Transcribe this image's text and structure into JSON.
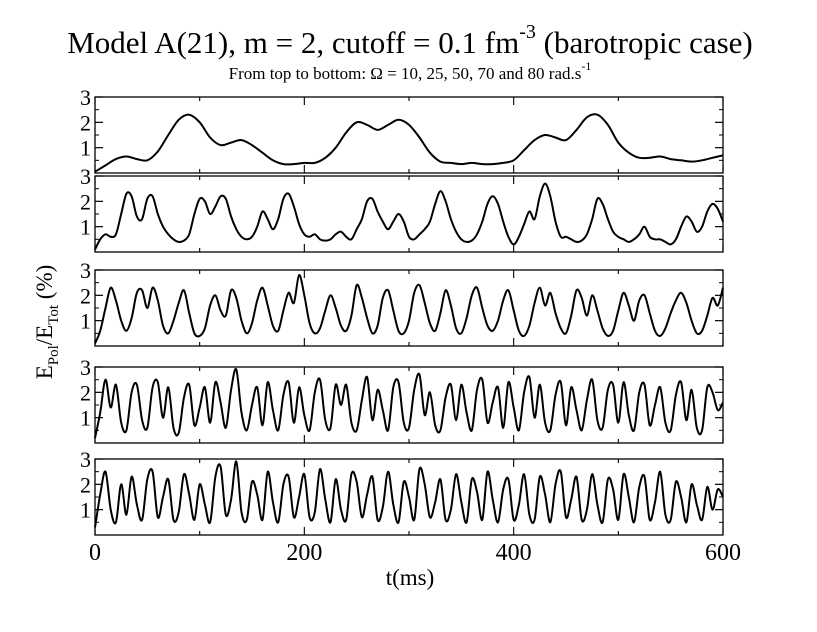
{
  "chart_data": {
    "type": "line",
    "title": {
      "prefix": "Model A(21), m = 2, cutoff = 0.1 fm",
      "exponent": "-3",
      "suffix": " (barotropic case)"
    },
    "subtitle": {
      "text": "From top to bottom: Ω = 10, 25, 50, 70 and 80 rad.s",
      "exponent": "-1"
    },
    "ylabel": {
      "E": "E",
      "sub1": "Pol",
      "slash": "/E",
      "sub2": "Tot",
      "unit": " (%)"
    },
    "xlabel": "t(ms)",
    "xlim": [
      0,
      600
    ],
    "x_ticks": [
      "0",
      "200",
      "400",
      "600"
    ],
    "panels": [
      {
        "ylim": [
          0,
          3
        ],
        "y_ticks": [
          "1",
          "2",
          "3"
        ],
        "x": [
          0,
          10,
          20,
          30,
          40,
          50,
          60,
          70,
          80,
          90,
          100,
          110,
          120,
          130,
          140,
          150,
          160,
          170,
          180,
          190,
          200,
          210,
          220,
          230,
          240,
          250,
          260,
          270,
          280,
          290,
          300,
          310,
          320,
          330,
          340,
          350,
          360,
          370,
          380,
          390,
          400,
          410,
          420,
          430,
          440,
          450,
          460,
          470,
          480,
          490,
          500,
          510,
          520,
          530,
          540,
          550,
          560,
          570,
          580,
          590,
          600
        ],
        "y": [
          0.05,
          0.3,
          0.55,
          0.65,
          0.55,
          0.5,
          0.85,
          1.5,
          2.1,
          2.3,
          2.0,
          1.4,
          1.1,
          1.2,
          1.3,
          1.1,
          0.8,
          0.5,
          0.35,
          0.35,
          0.4,
          0.4,
          0.6,
          1.0,
          1.6,
          2.0,
          1.9,
          1.7,
          1.9,
          2.1,
          1.9,
          1.4,
          0.8,
          0.45,
          0.4,
          0.35,
          0.4,
          0.35,
          0.35,
          0.4,
          0.5,
          0.9,
          1.3,
          1.5,
          1.4,
          1.3,
          1.7,
          2.2,
          2.3,
          1.9,
          1.2,
          0.8,
          0.6,
          0.6,
          0.65,
          0.55,
          0.5,
          0.45,
          0.5,
          0.6,
          0.7
        ]
      },
      {
        "ylim": [
          0,
          3
        ],
        "y_ticks": [
          "1",
          "2",
          "3"
        ],
        "x": [
          0,
          5,
          10,
          15,
          20,
          25,
          30,
          35,
          40,
          45,
          50,
          55,
          60,
          65,
          70,
          75,
          80,
          85,
          90,
          95,
          100,
          105,
          110,
          115,
          120,
          125,
          130,
          135,
          140,
          145,
          150,
          155,
          160,
          165,
          170,
          175,
          180,
          185,
          190,
          195,
          200,
          205,
          210,
          215,
          220,
          225,
          230,
          235,
          240,
          245,
          250,
          255,
          260,
          265,
          270,
          275,
          280,
          285,
          290,
          295,
          300,
          305,
          310,
          315,
          320,
          325,
          330,
          335,
          340,
          345,
          350,
          355,
          360,
          365,
          370,
          375,
          380,
          385,
          390,
          395,
          400,
          405,
          410,
          415,
          420,
          425,
          430,
          435,
          440,
          445,
          450,
          455,
          460,
          465,
          470,
          475,
          480,
          485,
          490,
          495,
          500,
          505,
          510,
          515,
          520,
          525,
          530,
          535,
          540,
          545,
          550,
          555,
          560,
          565,
          570,
          575,
          580,
          585,
          590,
          595,
          600
        ],
        "y": [
          0.1,
          0.5,
          0.7,
          0.6,
          0.7,
          1.5,
          2.3,
          2.2,
          1.4,
          1.3,
          2.1,
          2.2,
          1.5,
          1.0,
          0.7,
          0.5,
          0.4,
          0.45,
          0.7,
          1.5,
          2.1,
          2.0,
          1.5,
          1.8,
          2.2,
          2.1,
          1.4,
          0.9,
          0.6,
          0.5,
          0.6,
          1.0,
          1.6,
          1.3,
          0.9,
          1.3,
          2.1,
          2.3,
          1.8,
          1.1,
          0.7,
          0.6,
          0.7,
          0.5,
          0.45,
          0.5,
          0.7,
          0.8,
          0.6,
          0.5,
          0.9,
          1.3,
          2.0,
          2.1,
          1.6,
          1.2,
          0.9,
          1.2,
          1.5,
          1.2,
          0.6,
          0.5,
          0.7,
          0.9,
          1.2,
          1.9,
          2.4,
          2.0,
          1.3,
          0.8,
          0.5,
          0.4,
          0.45,
          0.7,
          1.2,
          1.9,
          2.2,
          1.9,
          1.2,
          0.6,
          0.3,
          0.6,
          1.1,
          1.6,
          1.3,
          2.2,
          2.7,
          2.2,
          1.2,
          0.6,
          0.6,
          0.5,
          0.4,
          0.45,
          0.7,
          1.3,
          2.1,
          1.9,
          1.3,
          0.8,
          0.6,
          0.5,
          0.4,
          0.5,
          0.7,
          1.0,
          0.6,
          0.5,
          0.5,
          0.4,
          0.3,
          0.5,
          1.0,
          1.4,
          1.2,
          0.8,
          1.0,
          1.6,
          1.9,
          1.7,
          1.2
        ]
      },
      {
        "ylim": [
          0,
          3
        ],
        "y_ticks": [
          "1",
          "2",
          "3"
        ],
        "x": [
          0,
          5,
          10,
          15,
          20,
          25,
          30,
          35,
          40,
          45,
          50,
          55,
          60,
          65,
          70,
          75,
          80,
          85,
          90,
          95,
          100,
          105,
          110,
          115,
          120,
          125,
          130,
          135,
          140,
          145,
          150,
          155,
          160,
          165,
          170,
          175,
          180,
          185,
          190,
          195,
          200,
          205,
          210,
          215,
          220,
          225,
          230,
          235,
          240,
          245,
          250,
          255,
          260,
          265,
          270,
          275,
          280,
          285,
          290,
          295,
          300,
          305,
          310,
          315,
          320,
          325,
          330,
          335,
          340,
          345,
          350,
          355,
          360,
          365,
          370,
          375,
          380,
          385,
          390,
          395,
          400,
          405,
          410,
          415,
          420,
          425,
          430,
          435,
          440,
          445,
          450,
          455,
          460,
          465,
          470,
          475,
          480,
          485,
          490,
          495,
          500,
          505,
          510,
          515,
          520,
          525,
          530,
          535,
          540,
          545,
          550,
          555,
          560,
          565,
          570,
          575,
          580,
          585,
          590,
          595,
          600
        ],
        "y": [
          0.1,
          0.6,
          1.5,
          2.3,
          1.8,
          1.0,
          0.6,
          1.1,
          2.1,
          2.2,
          1.5,
          2.3,
          1.8,
          0.8,
          0.5,
          1.0,
          1.7,
          2.2,
          1.3,
          0.5,
          0.4,
          0.7,
          1.6,
          2.0,
          1.4,
          1.2,
          2.2,
          1.9,
          1.0,
          0.5,
          0.9,
          1.8,
          2.3,
          1.6,
          0.8,
          0.6,
          1.4,
          2.1,
          1.7,
          2.8,
          2.0,
          0.9,
          0.5,
          0.7,
          1.4,
          2.0,
          1.5,
          0.8,
          0.6,
          1.2,
          2.4,
          1.9,
          1.1,
          0.5,
          0.8,
          1.9,
          2.2,
          1.4,
          0.6,
          0.5,
          1.0,
          2.1,
          2.4,
          1.7,
          0.9,
          0.6,
          1.3,
          2.2,
          1.6,
          0.7,
          0.5,
          1.1,
          2.0,
          2.3,
          1.5,
          0.8,
          0.6,
          1.0,
          1.8,
          2.2,
          1.4,
          0.6,
          0.4,
          0.8,
          1.7,
          2.3,
          1.6,
          2.1,
          1.3,
          0.7,
          0.5,
          1.2,
          2.2,
          1.9,
          1.2,
          2.0,
          1.4,
          0.7,
          0.4,
          0.6,
          1.4,
          2.1,
          1.6,
          1.0,
          1.8,
          2.0,
          1.3,
          0.6,
          0.4,
          0.7,
          1.3,
          1.8,
          2.1,
          1.7,
          1.0,
          0.5,
          0.6,
          1.2,
          1.9,
          1.6,
          2.3
        ]
      },
      {
        "ylim": [
          0,
          3
        ],
        "y_ticks": [
          "1",
          "2",
          "3"
        ],
        "x": [
          0,
          5,
          10,
          15,
          20,
          25,
          30,
          35,
          40,
          45,
          50,
          55,
          60,
          65,
          70,
          75,
          80,
          85,
          90,
          95,
          100,
          105,
          110,
          115,
          120,
          125,
          130,
          135,
          140,
          145,
          150,
          155,
          160,
          165,
          170,
          175,
          180,
          185,
          190,
          195,
          200,
          205,
          210,
          215,
          220,
          225,
          230,
          235,
          240,
          245,
          250,
          255,
          260,
          265,
          270,
          275,
          280,
          285,
          290,
          295,
          300,
          305,
          310,
          315,
          320,
          325,
          330,
          335,
          340,
          345,
          350,
          355,
          360,
          365,
          370,
          375,
          380,
          385,
          390,
          395,
          400,
          405,
          410,
          415,
          420,
          425,
          430,
          435,
          440,
          445,
          450,
          455,
          460,
          465,
          470,
          475,
          480,
          485,
          490,
          495,
          500,
          505,
          510,
          515,
          520,
          525,
          530,
          535,
          540,
          545,
          550,
          555,
          560,
          565,
          570,
          575,
          580,
          585,
          590,
          595,
          600
        ],
        "y": [
          0.2,
          1.2,
          2.5,
          1.4,
          2.3,
          0.8,
          0.5,
          2.0,
          2.3,
          0.9,
          0.6,
          2.2,
          2.4,
          1.0,
          2.2,
          0.6,
          0.4,
          1.8,
          2.3,
          0.7,
          1.4,
          2.2,
          0.8,
          2.4,
          1.6,
          0.6,
          2.1,
          2.9,
          1.2,
          0.5,
          1.5,
          2.2,
          0.7,
          2.4,
          1.3,
          0.5,
          1.9,
          2.4,
          0.8,
          2.2,
          1.1,
          0.5,
          2.0,
          2.5,
          0.9,
          0.6,
          2.3,
          1.5,
          2.3,
          0.8,
          0.5,
          1.7,
          2.6,
          0.9,
          2.1,
          1.3,
          0.5,
          2.2,
          2.4,
          0.8,
          0.6,
          2.1,
          2.7,
          1.1,
          2.0,
          0.7,
          0.5,
          1.8,
          2.3,
          0.9,
          2.3,
          1.2,
          0.5,
          2.1,
          2.5,
          0.8,
          1.6,
          2.2,
          0.6,
          2.4,
          1.4,
          0.5,
          2.0,
          2.6,
          1.0,
          2.3,
          0.8,
          0.5,
          1.9,
          2.4,
          0.7,
          2.2,
          1.3,
          0.5,
          1.7,
          2.5,
          0.9,
          0.6,
          2.1,
          2.3,
          0.8,
          2.4,
          1.1,
          0.5,
          2.0,
          2.3,
          0.7,
          1.5,
          2.2,
          0.8,
          0.5,
          1.9,
          2.4,
          0.9,
          2.1,
          0.6,
          0.5,
          2.2,
          2.0,
          1.3,
          1.6
        ]
      },
      {
        "ylim": [
          0,
          3
        ],
        "y_ticks": [
          "1",
          "2",
          "3"
        ],
        "x": [
          0,
          5,
          10,
          15,
          20,
          25,
          30,
          35,
          40,
          45,
          50,
          55,
          60,
          65,
          70,
          75,
          80,
          85,
          90,
          95,
          100,
          105,
          110,
          115,
          120,
          125,
          130,
          135,
          140,
          145,
          150,
          155,
          160,
          165,
          170,
          175,
          180,
          185,
          190,
          195,
          200,
          205,
          210,
          215,
          220,
          225,
          230,
          235,
          240,
          245,
          250,
          255,
          260,
          265,
          270,
          275,
          280,
          285,
          290,
          295,
          300,
          305,
          310,
          315,
          320,
          325,
          330,
          335,
          340,
          345,
          350,
          355,
          360,
          365,
          370,
          375,
          380,
          385,
          390,
          395,
          400,
          405,
          410,
          415,
          420,
          425,
          430,
          435,
          440,
          445,
          450,
          455,
          460,
          465,
          470,
          475,
          480,
          485,
          490,
          495,
          500,
          505,
          510,
          515,
          520,
          525,
          530,
          535,
          540,
          545,
          550,
          555,
          560,
          565,
          570,
          575,
          580,
          585,
          590,
          595,
          600
        ],
        "y": [
          0.3,
          1.6,
          2.5,
          1.0,
          0.5,
          2.0,
          0.8,
          2.3,
          1.2,
          0.6,
          2.2,
          2.5,
          0.7,
          1.5,
          2.2,
          0.6,
          0.9,
          2.4,
          1.6,
          0.6,
          2.0,
          1.2,
          0.5,
          2.3,
          2.7,
          0.8,
          1.4,
          2.9,
          0.9,
          0.6,
          2.1,
          1.6,
          0.6,
          2.5,
          1.3,
          0.5,
          2.0,
          2.3,
          0.7,
          1.5,
          2.4,
          0.7,
          0.9,
          2.6,
          1.4,
          0.5,
          2.2,
          1.0,
          0.6,
          2.4,
          2.1,
          0.7,
          1.6,
          2.3,
          0.6,
          1.1,
          2.5,
          1.2,
          0.5,
          2.1,
          1.5,
          0.6,
          2.6,
          2.0,
          0.7,
          1.3,
          2.2,
          0.6,
          1.0,
          2.4,
          1.3,
          0.5,
          2.2,
          1.7,
          0.6,
          2.5,
          1.4,
          0.5,
          1.8,
          2.2,
          0.6,
          1.2,
          2.4,
          0.8,
          0.6,
          2.3,
          1.6,
          0.5,
          2.0,
          2.5,
          0.7,
          1.4,
          2.3,
          0.6,
          1.0,
          2.4,
          1.2,
          0.5,
          2.2,
          1.8,
          0.6,
          2.4,
          1.5,
          0.5,
          1.9,
          2.3,
          0.6,
          1.3,
          2.5,
          0.8,
          0.6,
          2.1,
          1.5,
          0.5,
          2.0,
          1.2,
          0.6,
          1.9,
          1.0,
          1.8,
          1.5
        ]
      }
    ]
  }
}
